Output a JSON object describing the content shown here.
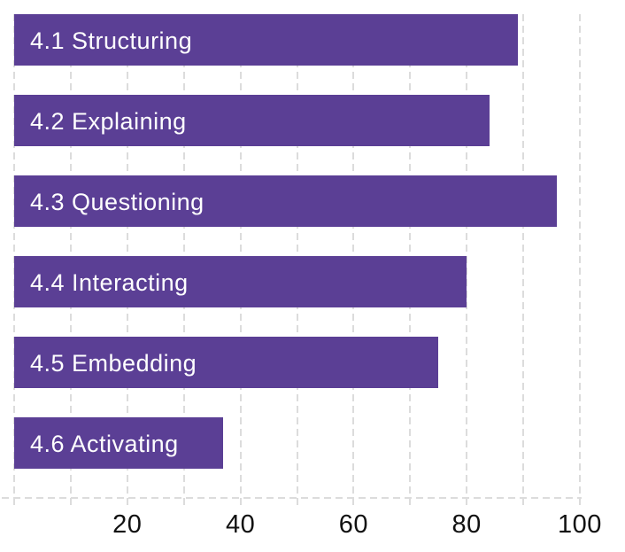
{
  "chart_data": {
    "type": "bar",
    "orientation": "horizontal",
    "categories": [
      "4.1 Structuring",
      "4.2 Explaining",
      "4.3 Questioning",
      "4.4 Interacting",
      "4.5 Embedding",
      "4.6 Activating"
    ],
    "values": [
      89,
      84,
      96,
      80,
      75,
      37
    ],
    "xlim": [
      0,
      100
    ],
    "x_tick_labels": [
      "20",
      "40",
      "60",
      "80",
      "100"
    ],
    "x_tick_values": [
      20,
      40,
      60,
      80,
      100
    ],
    "gridline_step": 10,
    "grid": true,
    "legend": false,
    "bar_color": "#5b3f95",
    "bar_label_color": "#ffffff",
    "gridline_color": "#dcdcdc",
    "tick_label_color": "#111111",
    "bar_label_position": "inside-start"
  }
}
